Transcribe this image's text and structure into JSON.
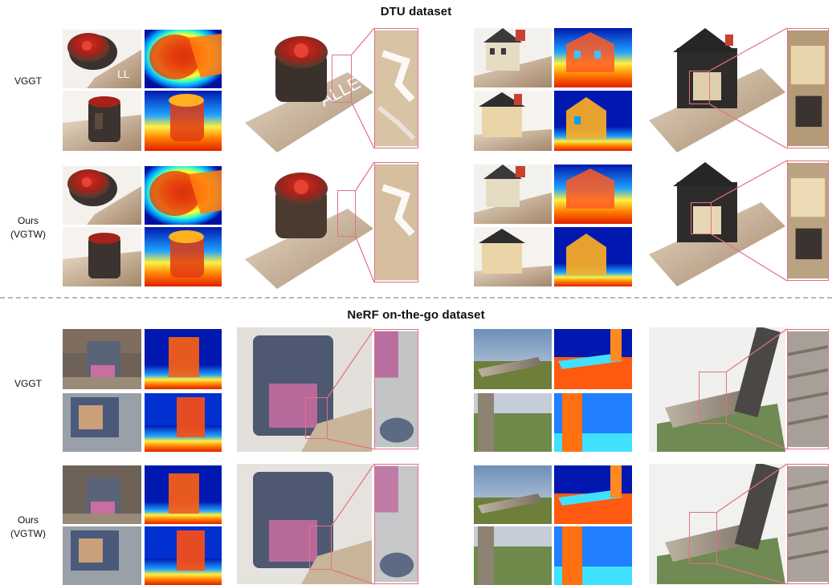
{
  "sections": [
    {
      "title": "DTU dataset",
      "rows": [
        {
          "label_line1": "VGGT",
          "label_line2": ""
        },
        {
          "label_line1": "Ours",
          "label_line2": "(VGTW)"
        }
      ]
    },
    {
      "title": "NeRF on-the-go dataset",
      "rows": [
        {
          "label_line1": "VGGT",
          "label_line2": ""
        },
        {
          "label_line1": "Ours",
          "label_line2": "(VGTW)"
        }
      ]
    }
  ],
  "colors": {
    "zoom_highlight": "#e46f86",
    "divider": "#b8b8b8",
    "colormap": "jet"
  }
}
